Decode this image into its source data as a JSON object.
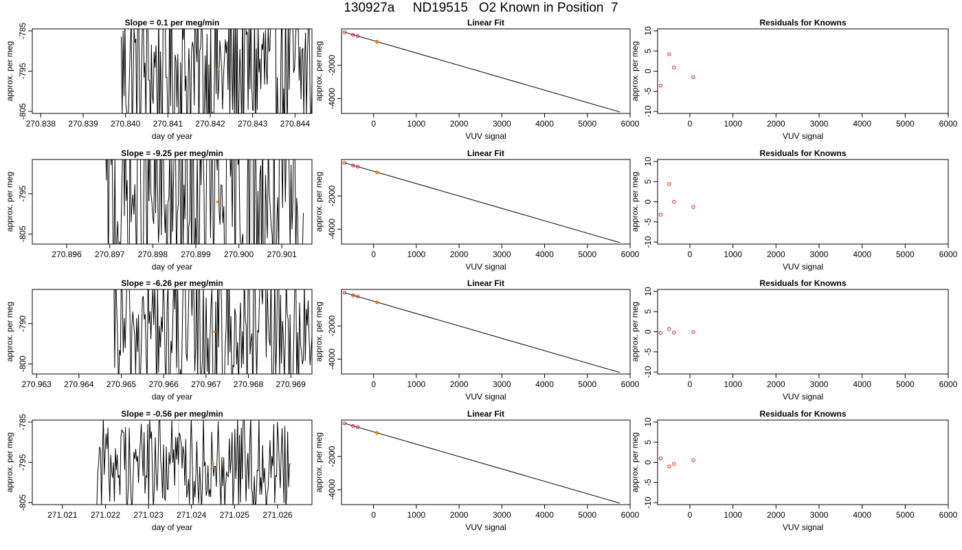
{
  "page": {
    "title": "130927a     ND19515   O2 Known in Position  7"
  },
  "chart_data": [
    {
      "panel": "timeseries",
      "type": "line",
      "title": "Slope =  0.1  per meg/min",
      "xlabel": "day of year",
      "ylabel": "approx. per meg",
      "xlim": [
        270.8378,
        270.8444
      ],
      "ylim": [
        -805.5,
        -784.5
      ],
      "xticks": [
        "270.838",
        "270.839",
        "270.840",
        "270.841",
        "270.842",
        "270.843",
        "270.844"
      ],
      "yticks": [
        "-805",
        "-795",
        "-785"
      ],
      "vlines": [
        270.8431
      ],
      "marker": {
        "x": 270.8422,
        "y": -794.6
      },
      "x_start": 270.8399,
      "x_end": 270.8444,
      "y_center": -795,
      "y_amp": 20
    },
    {
      "panel": "linear",
      "type": "scatter",
      "title": "Linear Fit",
      "xlabel": "VUV signal",
      "ylabel": "approx. per meg",
      "xlim": [
        -750,
        6000
      ],
      "ylim": [
        -4900,
        200
      ],
      "xticks": [
        "0",
        "1000",
        "2000",
        "3000",
        "4000",
        "5000",
        "6000"
      ],
      "yticks": [
        "-2000",
        "-4000"
      ],
      "points": [
        {
          "x": -680,
          "y": 0
        },
        {
          "x": -480,
          "y": -160
        },
        {
          "x": -370,
          "y": -225
        }
      ],
      "highlight": {
        "x": 80,
        "y": -580
      },
      "fit": {
        "x": [
          -680,
          5760
        ],
        "y": [
          0,
          -4810
        ]
      }
    },
    {
      "panel": "residuals",
      "type": "scatter",
      "title": "Residuals for Knowns",
      "xlabel": "VUV signal",
      "ylabel": "approx. per meg",
      "xlim": [
        -750,
        6000
      ],
      "ylim": [
        -10.5,
        10.5
      ],
      "xticks": [
        "0",
        "1000",
        "2000",
        "3000",
        "4000",
        "5000",
        "6000"
      ],
      "yticks": [
        "-10",
        "-5",
        "0",
        "5",
        "10"
      ],
      "points": [
        {
          "x": -680,
          "y": -3.6
        },
        {
          "x": -480,
          "y": 4.2
        },
        {
          "x": -370,
          "y": 0.9
        },
        {
          "x": 80,
          "y": -1.5
        }
      ]
    },
    {
      "panel": "timeseries",
      "type": "line",
      "title": "Slope =  -9.25  per meg/min",
      "xlabel": "day of year",
      "ylabel": "approx. per meg",
      "xlim": [
        270.8952,
        270.9017
      ],
      "ylim": [
        -807.5,
        -786.5
      ],
      "xticks": [
        "270.896",
        "270.897",
        "270.898",
        "270.899",
        "270.900",
        "270.901"
      ],
      "yticks": [
        "-805",
        "-795"
      ],
      "vlines": [
        270.9003
      ],
      "marker": {
        "x": 270.8995,
        "y": -797.0
      },
      "x_start": 270.8969,
      "x_end": 270.9015,
      "y_center": -797,
      "y_amp": 26
    },
    {
      "panel": "linear",
      "type": "scatter",
      "title": "Linear Fit",
      "xlabel": "VUV signal",
      "ylabel": "approx. per meg",
      "xlim": [
        -750,
        6000
      ],
      "ylim": [
        -4900,
        200
      ],
      "xticks": [
        "0",
        "1000",
        "2000",
        "3000",
        "4000",
        "5000",
        "6000"
      ],
      "yticks": [
        "-2000",
        "-4000"
      ],
      "points": [
        {
          "x": -680,
          "y": 0
        },
        {
          "x": -480,
          "y": -160
        },
        {
          "x": -370,
          "y": -225
        }
      ],
      "highlight": {
        "x": 80,
        "y": -580
      },
      "fit": {
        "x": [
          -680,
          5760
        ],
        "y": [
          0,
          -4810
        ]
      }
    },
    {
      "panel": "residuals",
      "type": "scatter",
      "title": "Residuals for Knowns",
      "xlabel": "VUV signal",
      "ylabel": "approx. per meg",
      "xlim": [
        -750,
        6000
      ],
      "ylim": [
        -10.5,
        10.5
      ],
      "xticks": [
        "0",
        "1000",
        "2000",
        "3000",
        "4000",
        "5000",
        "6000"
      ],
      "yticks": [
        "-10",
        "-5",
        "0",
        "5",
        "10"
      ],
      "points": [
        {
          "x": -680,
          "y": -3.2
        },
        {
          "x": -480,
          "y": 4.4
        },
        {
          "x": -370,
          "y": 0.0
        },
        {
          "x": 80,
          "y": -1.3
        }
      ]
    },
    {
      "panel": "timeseries",
      "type": "line",
      "title": "Slope =  -6.26  per meg/min",
      "xlabel": "day of year",
      "ylabel": "approx. per meg",
      "xlim": [
        270.9629,
        270.9695
      ],
      "ylim": [
        -802.5,
        -781.5
      ],
      "xticks": [
        "270.963",
        "270.964",
        "270.965",
        "270.966",
        "270.967",
        "270.968",
        "270.969"
      ],
      "yticks": [
        "-800",
        "-790"
      ],
      "vlines": [
        270.9663,
        270.9681
      ],
      "marker": {
        "x": 270.9672,
        "y": -792.0
      },
      "x_start": 270.9648,
      "x_end": 270.9695,
      "y_center": -792,
      "y_amp": 18
    },
    {
      "panel": "linear",
      "type": "scatter",
      "title": "Linear Fit",
      "xlabel": "VUV signal",
      "ylabel": "approx. per meg",
      "xlim": [
        -750,
        6000
      ],
      "ylim": [
        -4900,
        200
      ],
      "xticks": [
        "0",
        "1000",
        "2000",
        "3000",
        "4000",
        "5000",
        "6000"
      ],
      "yticks": [
        "-2000",
        "-4000"
      ],
      "points": [
        {
          "x": -680,
          "y": 0
        },
        {
          "x": -480,
          "y": -160
        },
        {
          "x": -370,
          "y": -225
        }
      ],
      "highlight": {
        "x": 80,
        "y": -580
      },
      "fit": {
        "x": [
          -680,
          5760
        ],
        "y": [
          0,
          -4810
        ]
      }
    },
    {
      "panel": "residuals",
      "type": "scatter",
      "title": "Residuals for Knowns",
      "xlabel": "VUV signal",
      "ylabel": "approx. per meg",
      "xlim": [
        -750,
        6000
      ],
      "ylim": [
        -10.5,
        10.5
      ],
      "xticks": [
        "0",
        "1000",
        "2000",
        "3000",
        "4000",
        "5000",
        "6000"
      ],
      "yticks": [
        "-10",
        "-5",
        "0",
        "5",
        "10"
      ],
      "points": [
        {
          "x": -680,
          "y": -0.3
        },
        {
          "x": -480,
          "y": 0.7
        },
        {
          "x": -370,
          "y": -0.2
        },
        {
          "x": 80,
          "y": -0.1
        }
      ]
    },
    {
      "panel": "timeseries",
      "type": "line",
      "title": "Slope =  -0.56  per meg/min",
      "xlabel": "day of year",
      "ylabel": "approx. per meg",
      "xlim": [
        271.0203,
        271.0268
      ],
      "ylim": [
        -805.5,
        -784.5
      ],
      "xticks": [
        "271.021",
        "271.022",
        "271.023",
        "271.024",
        "271.025",
        "271.026"
      ],
      "yticks": [
        "-805",
        "-795",
        "-785"
      ],
      "vlines": [
        271.0237,
        271.0254
      ],
      "marker": {
        "x": 271.0245,
        "y": -795.3
      },
      "x_start": 271.0218,
      "x_end": 271.0263,
      "y_center": -795,
      "y_amp": 12
    },
    {
      "panel": "linear",
      "type": "scatter",
      "title": "Linear Fit",
      "xlabel": "VUV signal",
      "ylabel": "approx. per meg",
      "xlim": [
        -750,
        6000
      ],
      "ylim": [
        -4900,
        200
      ],
      "xticks": [
        "0",
        "1000",
        "2000",
        "3000",
        "4000",
        "5000",
        "6000"
      ],
      "yticks": [
        "-2000",
        "-4000"
      ],
      "points": [
        {
          "x": -680,
          "y": 0
        },
        {
          "x": -480,
          "y": -160
        },
        {
          "x": -370,
          "y": -225
        }
      ],
      "highlight": {
        "x": 80,
        "y": -580
      },
      "fit": {
        "x": [
          -680,
          5760
        ],
        "y": [
          0,
          -4810
        ]
      }
    },
    {
      "panel": "residuals",
      "type": "scatter",
      "title": "Residuals for Knowns",
      "xlabel": "VUV signal",
      "ylabel": "approx. per meg",
      "xlim": [
        -750,
        6000
      ],
      "ylim": [
        -10.5,
        10.5
      ],
      "xticks": [
        "0",
        "1000",
        "2000",
        "3000",
        "4000",
        "5000",
        "6000"
      ],
      "yticks": [
        "-10",
        "-5",
        "0",
        "5",
        "10"
      ],
      "points": [
        {
          "x": -680,
          "y": 1.0
        },
        {
          "x": -480,
          "y": -1.0
        },
        {
          "x": -370,
          "y": -0.4
        },
        {
          "x": 80,
          "y": 0.5
        }
      ]
    }
  ],
  "colors": {
    "line": "#000000",
    "point": "#cc2222",
    "highlight": "#ff8800",
    "vline": "#bbbbbb"
  }
}
